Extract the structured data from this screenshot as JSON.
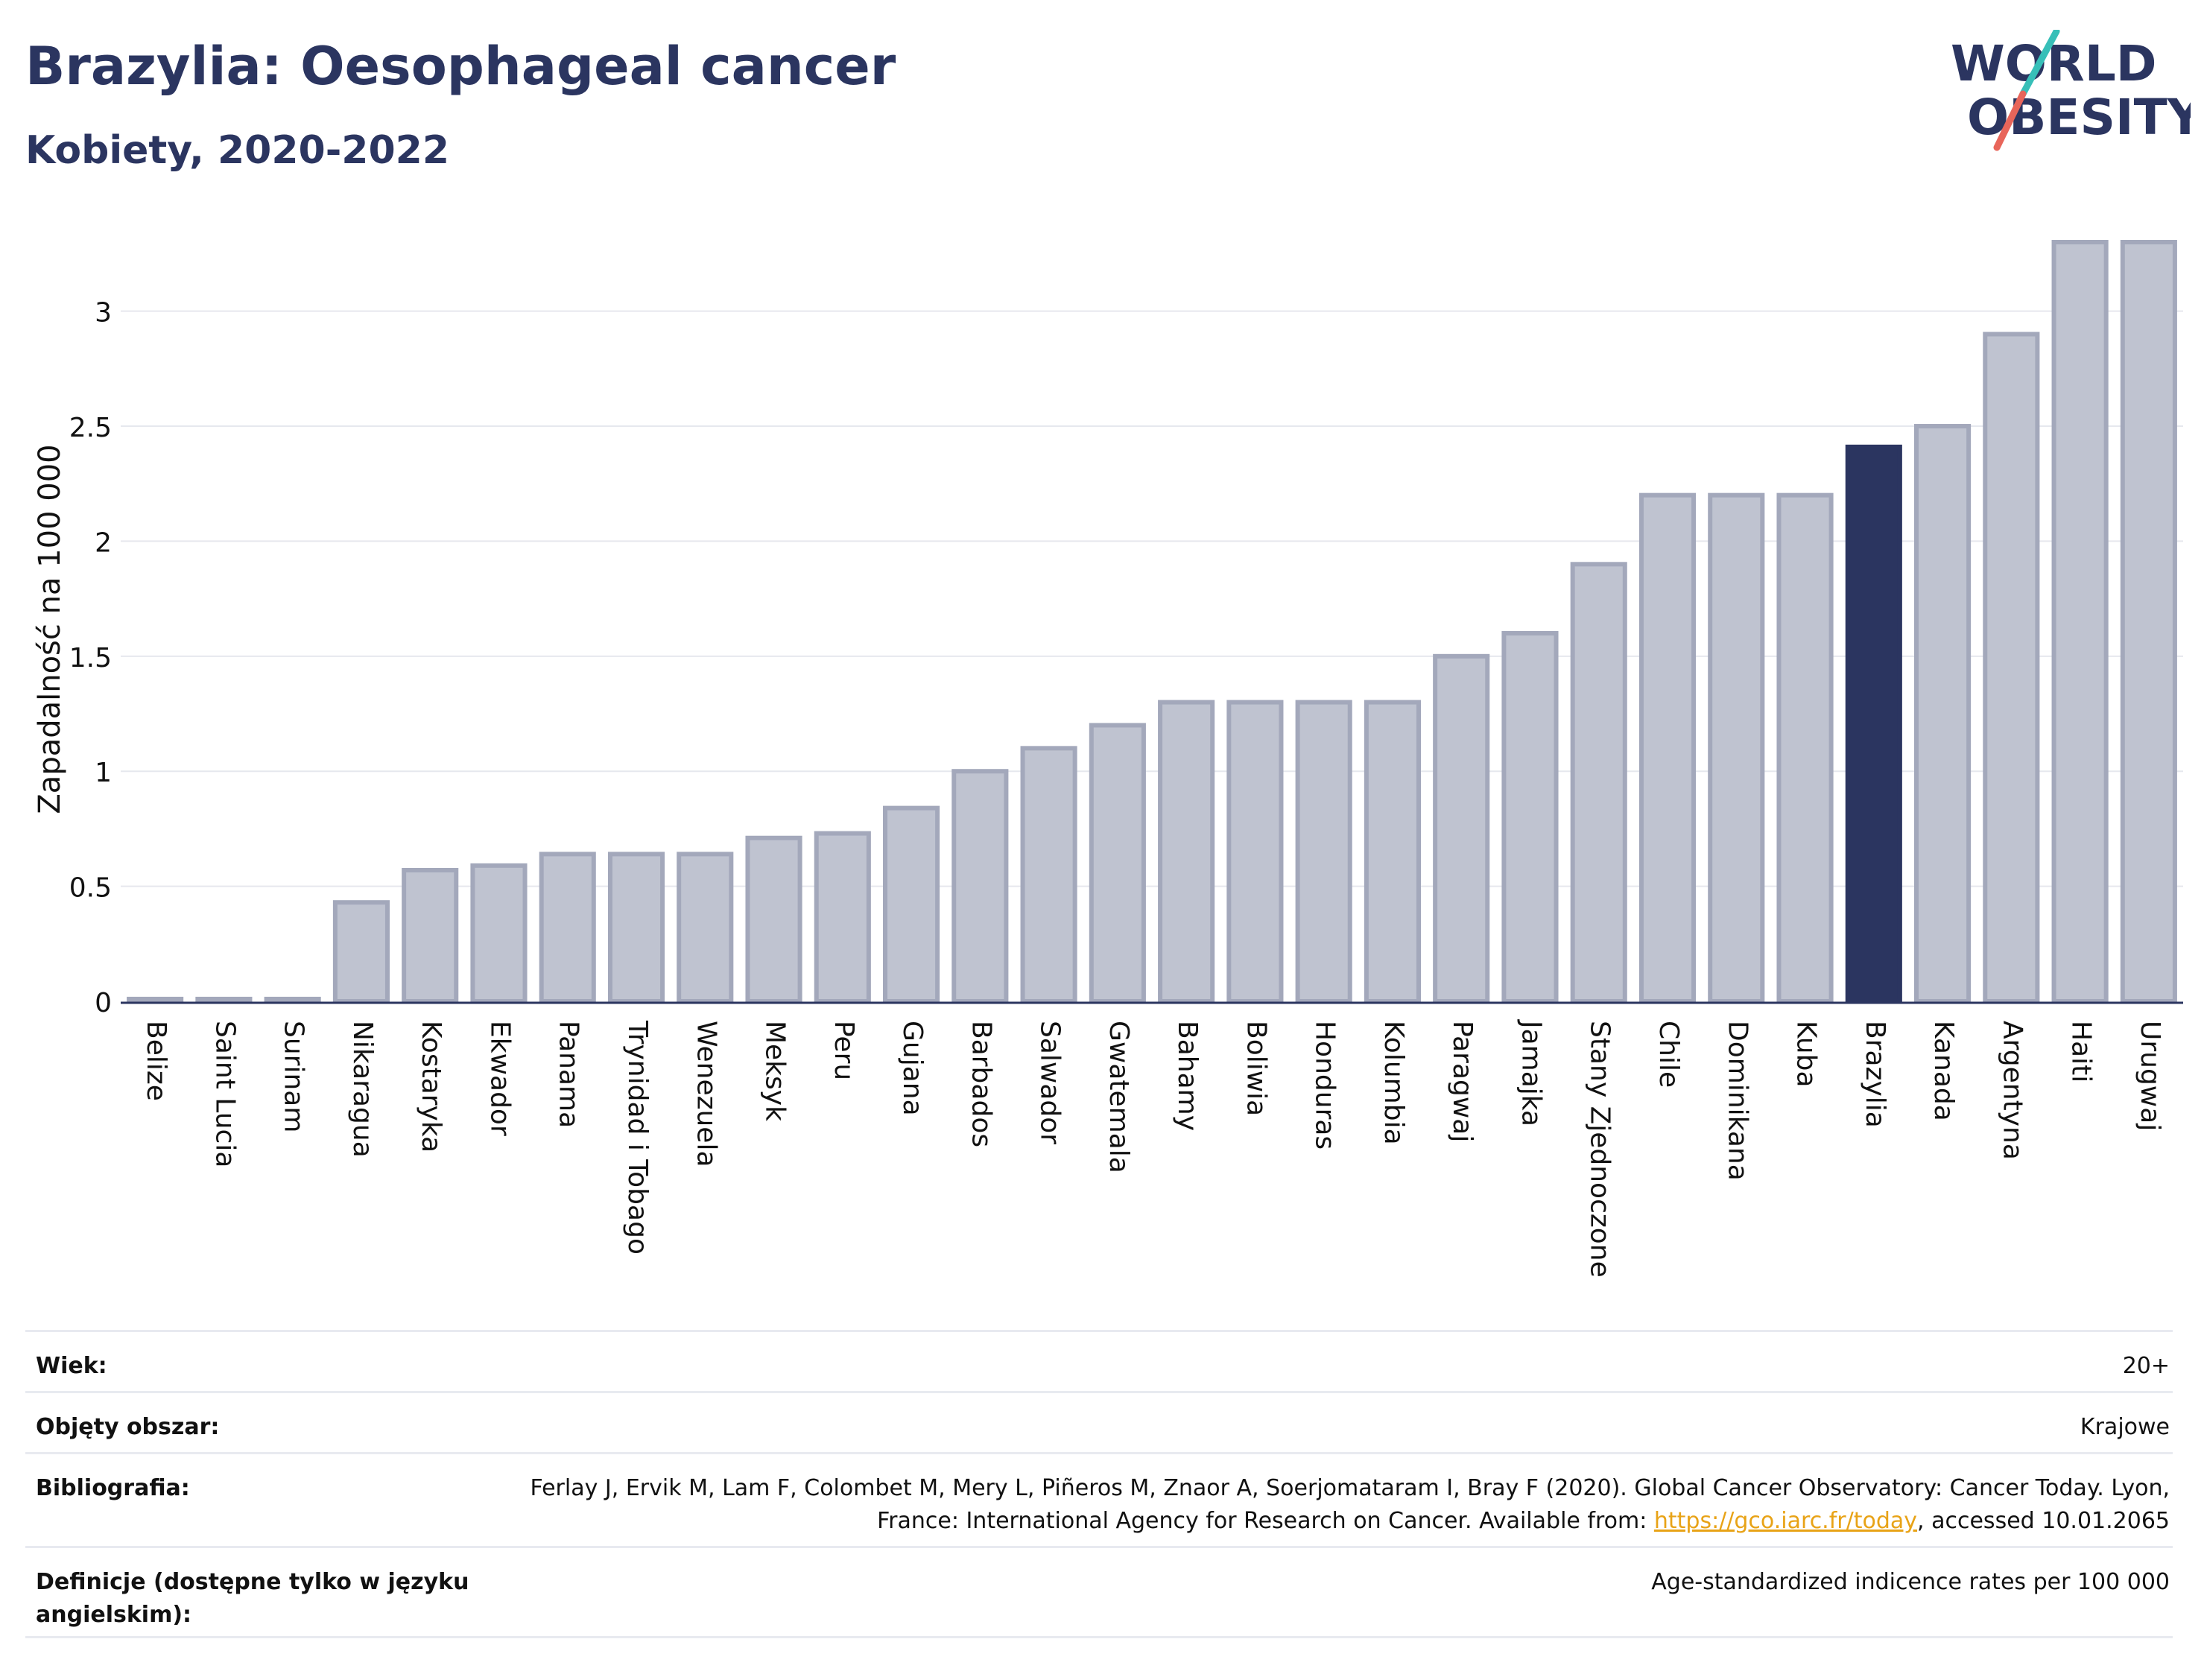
{
  "header": {
    "title": "Brazylia: Oesophageal cancer",
    "subtitle": "Kobiety, 2020-2022",
    "logo_text_top": "WORLD",
    "logo_text_bottom": "OBESITY"
  },
  "colors": {
    "bar": "#bfc3d0",
    "bar_stroke": "#a3a8bb",
    "highlight": "#2b3560",
    "accent_teal": "#37bfb8",
    "accent_red": "#e8655a"
  },
  "chart_data": {
    "type": "bar",
    "ylabel": "Zapadalność na 100 000",
    "ylim": [
      0,
      3.3
    ],
    "yticks": [
      0,
      0.5,
      1,
      1.5,
      2,
      2.5,
      3
    ],
    "ytick_labels": [
      "0",
      "0.5",
      "1",
      "1.5",
      "2",
      "2.5",
      "3"
    ],
    "grid": true,
    "highlight": "Brazylia",
    "categories": [
      "Belize",
      "Saint Lucia",
      "Surinam",
      "Nikaragua",
      "Kostaryka",
      "Ekwador",
      "Panama",
      "Trynidad i Tobago",
      "Wenezuela",
      "Meksyk",
      "Peru",
      "Gujana",
      "Barbados",
      "Salwador",
      "Gwatemala",
      "Bahamy",
      "Boliwia",
      "Honduras",
      "Kolumbia",
      "Paragwaj",
      "Jamajka",
      "Stany Zjednoczone",
      "Chile",
      "Dominikana",
      "Kuba",
      "Brazylia",
      "Kanada",
      "Argentyna",
      "Haiti",
      "Urugwaj"
    ],
    "values": [
      0.01,
      0.01,
      0.01,
      0.43,
      0.57,
      0.59,
      0.64,
      0.64,
      0.64,
      0.71,
      0.73,
      0.84,
      1.0,
      1.1,
      1.2,
      1.3,
      1.3,
      1.3,
      1.3,
      1.5,
      1.6,
      1.9,
      2.2,
      2.2,
      2.2,
      2.41,
      2.5,
      2.9,
      3.3,
      3.3
    ]
  },
  "metadata": {
    "age_label": "Wiek:",
    "age_value": "20+",
    "coverage_label": "Objęty obszar:",
    "coverage_value": "Krajowe",
    "bibliography_label": "Bibliografia:",
    "bibliography_text_1": "Ferlay J, Ervik M, Lam F, Colombet M, Mery L, Piñeros M, Znaor A, Soerjomataram I, Bray F (2020). Global Cancer Observatory: Cancer Today. Lyon, France: International Agency for Research on Cancer. Available from: ",
    "bibliography_link": "https://gco.iarc.fr/today",
    "bibliography_text_2": ", accessed 10.01.2065",
    "definitions_label": "Definicje (dostępne tylko w języku angielskim):",
    "definitions_value": "Age-standardized indicence rates per 100 000"
  }
}
